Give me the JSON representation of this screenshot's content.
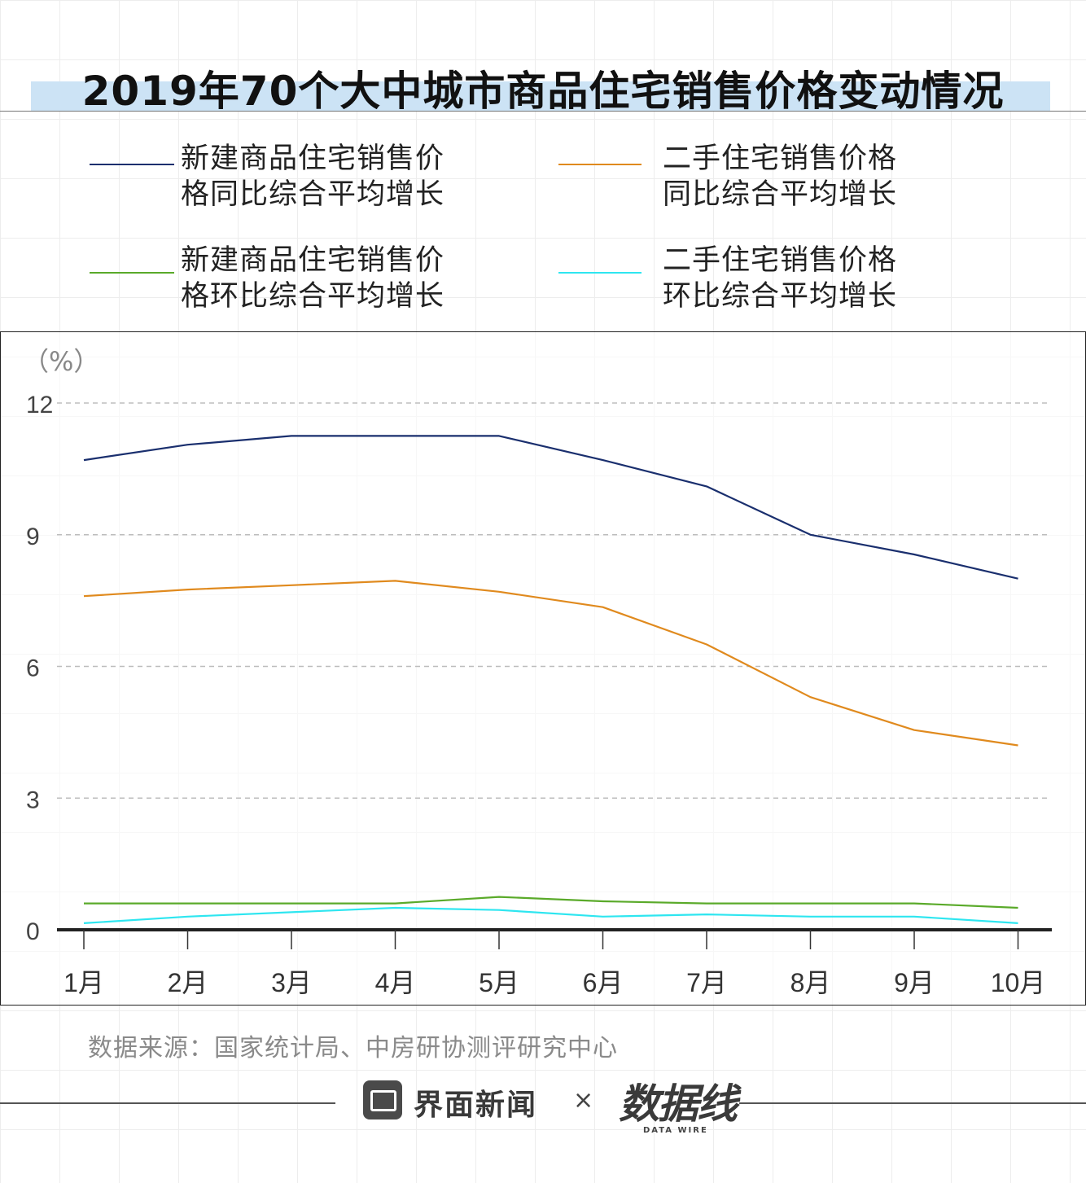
{
  "header": {
    "title": "2019年70个大中城市商品住宅销售价格变动情况"
  },
  "legend": [
    {
      "line1": "新建商品住宅销售价",
      "line2": "格同比综合平均增长",
      "color": "#1a2f6e"
    },
    {
      "line1": "二手住宅销售价格",
      "line2": "同比综合平均增长",
      "color": "#e08a1e"
    },
    {
      "line1": "新建商品住宅销售价",
      "line2": "格环比综合平均增长",
      "color": "#5aaa2a"
    },
    {
      "line1": "二手住宅销售价格",
      "line2": "环比综合平均增长",
      "color": "#2ee6f0"
    }
  ],
  "chart_data": {
    "type": "line",
    "title": "2019年70个大中城市商品住宅销售价格变动情况",
    "unit_label": "（%）",
    "categories": [
      "1月",
      "2月",
      "3月",
      "4月",
      "5月",
      "6月",
      "7月",
      "8月",
      "9月",
      "10月"
    ],
    "ylim": [
      0,
      12
    ],
    "yticks": [
      "0",
      "3",
      "6",
      "9",
      "12"
    ],
    "grid": "horizontal dashed",
    "legend_position": "top",
    "series": [
      {
        "name": "新建商品住宅销售价格同比综合平均增长",
        "color": "#1a2f6e",
        "values": [
          10.7,
          11.05,
          11.25,
          11.25,
          11.25,
          10.7,
          10.1,
          9.0,
          8.55,
          8.0
        ]
      },
      {
        "name": "二手住宅销售价格同比综合平均增长",
        "color": "#e08a1e",
        "values": [
          7.6,
          7.75,
          7.85,
          7.95,
          7.7,
          7.35,
          6.5,
          5.3,
          4.55,
          4.2
        ]
      },
      {
        "name": "新建商品住宅销售价格环比综合平均增长",
        "color": "#5aaa2a",
        "values": [
          0.6,
          0.6,
          0.6,
          0.6,
          0.75,
          0.65,
          0.6,
          0.6,
          0.6,
          0.5
        ]
      },
      {
        "name": "二手住宅销售价格环比综合平均增长",
        "color": "#2ee6f0",
        "values": [
          0.15,
          0.3,
          0.4,
          0.5,
          0.45,
          0.3,
          0.35,
          0.3,
          0.3,
          0.15
        ]
      }
    ]
  },
  "footer": {
    "source": "数据来源：国家统计局、中房研协测评研究中心",
    "brand1": "界面新闻",
    "times": "×",
    "brand2": "数据线",
    "brand2_sub": "DATA WIRE"
  }
}
